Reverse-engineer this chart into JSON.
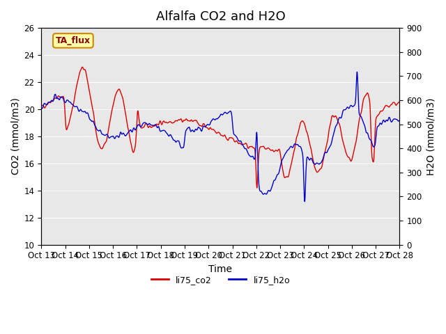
{
  "title": "Alfalfa CO2 and H2O",
  "xlabel": "Time",
  "ylabel_left": "CO2 (mmol/m3)",
  "ylabel_right": "H2O (mmol/m3)",
  "ylim_left": [
    10,
    26
  ],
  "ylim_right": [
    0,
    900
  ],
  "yticks_left": [
    10,
    12,
    14,
    16,
    18,
    20,
    22,
    24,
    26
  ],
  "yticks_right": [
    0,
    100,
    200,
    300,
    400,
    500,
    600,
    700,
    800,
    900
  ],
  "xtick_labels": [
    "Oct 13",
    "Oct 14",
    "Oct 15",
    "Oct 16",
    "Oct 17",
    "Oct 18",
    "Oct 19",
    "Oct 20",
    "Oct 21",
    "Oct 22",
    "Oct 23",
    "Oct 24",
    "Oct 25",
    "Oct 26",
    "Oct 27",
    "Oct 28"
  ],
  "label_box_text": "TA_flux",
  "label_box_bg": "#ffffaa",
  "label_box_border": "#cc8800",
  "legend_co2": "li75_co2",
  "legend_h2o": "li75_h2o",
  "color_co2": "#dd0000",
  "color_h2o": "#0000cc",
  "bg_color": "#e8e8e8",
  "fig_bg": "#ffffff",
  "linewidth": 1.0,
  "title_fontsize": 13,
  "axis_fontsize": 10,
  "tick_fontsize": 8.5
}
